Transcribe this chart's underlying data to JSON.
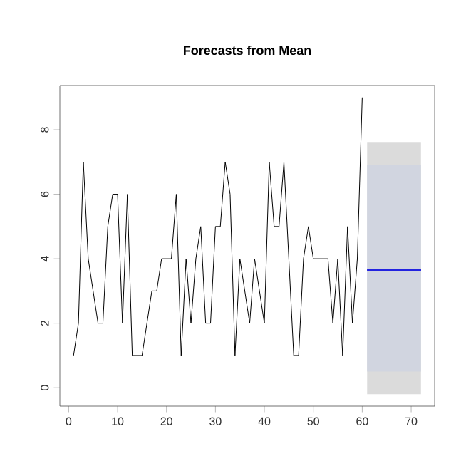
{
  "chart_data": {
    "type": "line",
    "title": "Forecasts from Mean",
    "xlim": [
      -1.8,
      74.8
    ],
    "ylim": [
      -0.57,
      9.37
    ],
    "xticks": [
      0,
      10,
      20,
      30,
      40,
      50,
      60,
      70
    ],
    "yticks": [
      0,
      2,
      4,
      6,
      8
    ],
    "grid": false,
    "series": [
      {
        "color": "#000000",
        "x": [
          1,
          2,
          3,
          4,
          5,
          6,
          7,
          8,
          9,
          10,
          11,
          12,
          13,
          14,
          15,
          16,
          17,
          18,
          19,
          20,
          21,
          22,
          23,
          24,
          25,
          26,
          27,
          28,
          29,
          30,
          31,
          32,
          33,
          34,
          35,
          36,
          37,
          38,
          39,
          40,
          41,
          42,
          43,
          44,
          45,
          46,
          47,
          48,
          49,
          50,
          51,
          52,
          53,
          54,
          55,
          56,
          57,
          58,
          59,
          60
        ],
        "values": [
          1,
          2,
          7,
          4,
          3,
          2,
          2,
          5,
          6,
          6,
          2,
          6,
          1,
          1,
          1,
          2,
          3,
          3,
          4,
          4,
          4,
          6,
          1,
          4,
          2,
          4,
          5,
          2,
          2,
          5,
          5,
          7,
          6,
          1,
          4,
          3,
          2,
          4,
          3,
          2,
          7,
          5,
          5,
          7,
          4,
          1,
          1,
          4,
          5,
          4,
          4,
          4,
          4,
          2,
          4,
          1,
          5,
          2,
          4,
          9
        ]
      },
      {
        "color": "#2323e0",
        "x": [
          61,
          72
        ],
        "values": [
          3.65,
          3.65
        ],
        "lower": [
          -0.2,
          -0.2
        ],
        "upper": [
          7.6,
          7.6
        ]
      },
      {
        "color": "#2323e0",
        "x": [
          61,
          72
        ],
        "values": [
          3.65,
          3.65
        ],
        "lower": [
          0.5,
          0.5
        ],
        "upper": [
          6.9,
          6.9
        ]
      }
    ]
  }
}
